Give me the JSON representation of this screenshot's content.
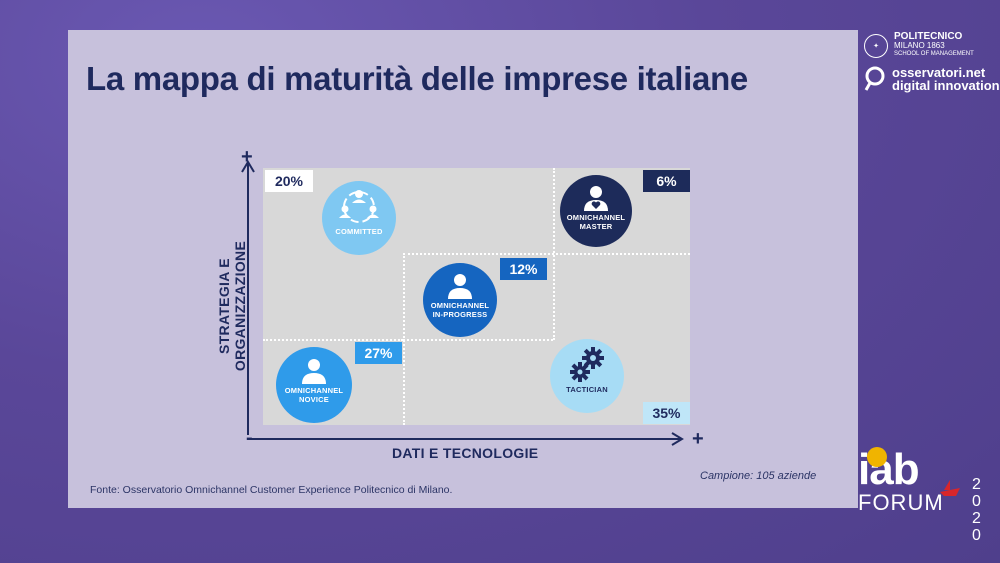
{
  "title": "La mappa di maturità delle imprese italiane",
  "axes": {
    "x_label": "DATI E TECNOLOGIE",
    "y_label_line1": "STRATEGIA E",
    "y_label_line2": "ORGANIZZAZIONE",
    "plus": "+",
    "minus": "-"
  },
  "segments": [
    {
      "id": "committed",
      "label": "COMMITTED",
      "pct": "20%",
      "color": "#7fc8f2",
      "pct_bg": "#ffffff",
      "pct_color": "#1f2a5e",
      "icon": "group-icon"
    },
    {
      "id": "master",
      "label_line1": "OMNICHANNEL",
      "label_line2": "MASTER",
      "pct": "6%",
      "color": "#1d2b5a",
      "pct_bg": "#1d2b5a",
      "pct_color": "#ffffff",
      "icon": "user-heart-icon"
    },
    {
      "id": "inprogress",
      "label_line1": "OMNICHANNEL",
      "label_line2": "IN-PROGRESS",
      "pct": "12%",
      "color": "#1565c0",
      "pct_bg": "#1565c0",
      "pct_color": "#ffffff",
      "icon": "user-icon"
    },
    {
      "id": "novice",
      "label_line1": "OMNICHANNEL",
      "label_line2": "NOVICE",
      "pct": "27%",
      "color": "#2f9bea",
      "pct_bg": "#2f9bea",
      "pct_color": "#ffffff",
      "icon": "user-icon"
    },
    {
      "id": "tactician",
      "label": "TACTICIAN",
      "pct": "35%",
      "color": "#a7dcf5",
      "pct_bg": "#bfe6f8",
      "pct_color": "#1f2a5e",
      "icon": "gears-icon"
    }
  ],
  "source": "Fonte: Osservatorio Omnichannel Customer Experience Politecnico di Milano.",
  "sample": "Campione: 105 aziende",
  "logos": {
    "politecnico_line1": "POLITECNICO",
    "politecnico_line2": "MILANO 1863",
    "politecnico_line3": "SCHOOL OF MANAGEMENT",
    "osservatori_line1": "osservatori.net",
    "osservatori_line2": "digital innovation",
    "iab_word": "iab",
    "iab_forum": "FORUM",
    "iab_year": "2020"
  }
}
